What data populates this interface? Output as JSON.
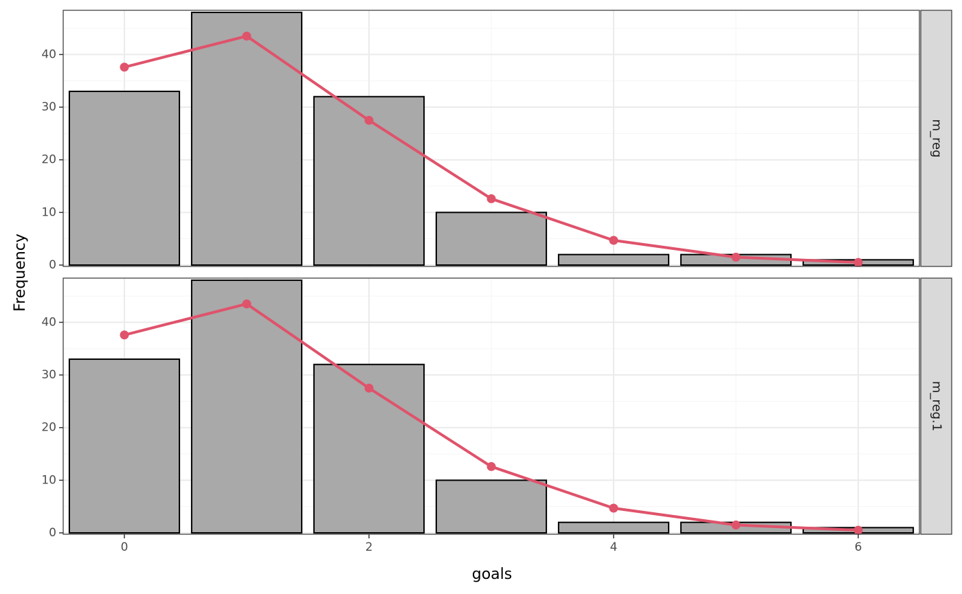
{
  "chart_data": {
    "type": "bar",
    "xlabel": "goals",
    "ylabel": "Frequency",
    "xlim": [
      -0.5,
      6.5
    ],
    "ylim": [
      0,
      48
    ],
    "x_ticks": [
      0,
      2,
      4,
      6
    ],
    "y_ticks": [
      0,
      10,
      20,
      30,
      40
    ],
    "grid": true,
    "colors": {
      "bar_fill": "#a9a9a9",
      "bar_stroke": "#000000",
      "line": "#df536b",
      "strip_fill": "#d9d9d9",
      "grid_major": "#ebebeb",
      "grid_minor": "#f5f5f5"
    },
    "panels": [
      {
        "strip": "m_reg",
        "x": [
          0,
          1,
          2,
          3,
          4,
          5,
          6
        ],
        "observed": [
          33,
          48,
          32,
          10,
          2,
          2,
          1
        ],
        "expected": [
          37.6,
          43.5,
          27.5,
          12.6,
          4.7,
          1.5,
          0.5
        ]
      },
      {
        "strip": "m_reg.1",
        "x": [
          0,
          1,
          2,
          3,
          4,
          5,
          6
        ],
        "observed": [
          33,
          48,
          32,
          10,
          2,
          2,
          1
        ],
        "expected": [
          37.6,
          43.5,
          27.5,
          12.6,
          4.7,
          1.5,
          0.5
        ]
      }
    ]
  }
}
